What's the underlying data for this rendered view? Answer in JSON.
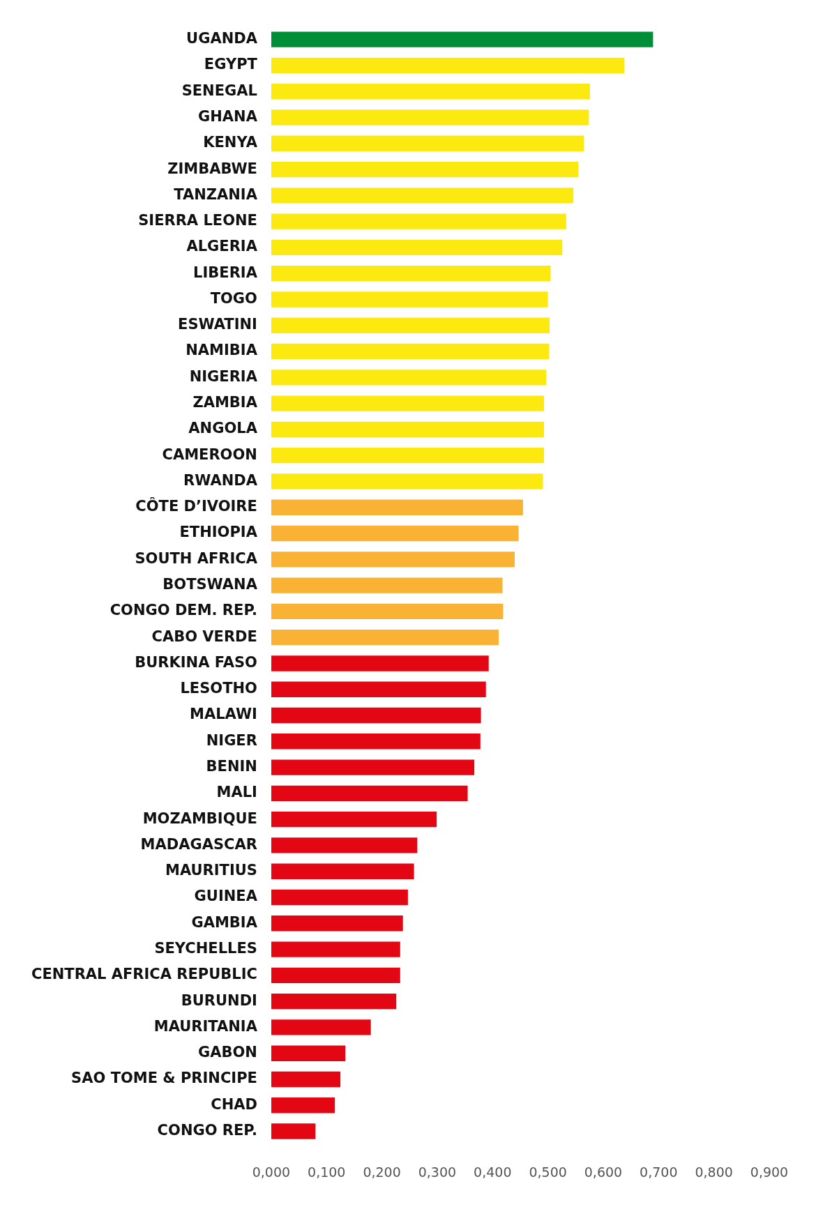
{
  "chart_data": {
    "type": "bar",
    "orientation": "horizontal",
    "categories": [
      "UGANDA",
      "EGYPT",
      "SENEGAL",
      "GHANA",
      "KENYA",
      "ZIMBABWE",
      "TANZANIA",
      "SIERRA LEONE",
      "ALGERIA",
      "LIBERIA",
      "TOGO",
      "ESWATINI",
      "NAMIBIA",
      "NIGERIA",
      "ZAMBIA",
      "ANGOLA",
      "CAMEROON",
      "RWANDA",
      "CÔTE D’IVOIRE",
      "ETHIOPIA",
      "SOUTH AFRICA",
      "BOTSWANA",
      "CONGO DEM. REP.",
      "CABO VERDE",
      "BURKINA FASO",
      "LESOTHO",
      "MALAWI",
      "NIGER",
      "BENIN",
      "MALI",
      "MOZAMBIQUE",
      "MADAGASCAR",
      "MAURITIUS",
      "GUINEA",
      "GAMBIA",
      "SEYCHELLES",
      "CENTRAL AFRICA REPUBLIC",
      "BURUNDI",
      "MAURITANIA",
      "GABON",
      "SAO TOME & PRINCIPE",
      "CHAD",
      "CONGO REP."
    ],
    "values": [
      0.69,
      0.638,
      0.576,
      0.574,
      0.565,
      0.555,
      0.546,
      0.533,
      0.526,
      0.505,
      0.5,
      0.503,
      0.502,
      0.497,
      0.493,
      0.493,
      0.493,
      0.491,
      0.455,
      0.447,
      0.44,
      0.418,
      0.419,
      0.411,
      0.393,
      0.388,
      0.379,
      0.378,
      0.367,
      0.355,
      0.299,
      0.264,
      0.258,
      0.247,
      0.238,
      0.233,
      0.233,
      0.226,
      0.18,
      0.134,
      0.125,
      0.115,
      0.08
    ],
    "colors": [
      "#008f36",
      "#fce910",
      "#fce910",
      "#fce910",
      "#fce910",
      "#fce910",
      "#fce910",
      "#fce910",
      "#fce910",
      "#fce910",
      "#fce910",
      "#fce910",
      "#fce910",
      "#fce910",
      "#fce910",
      "#fce910",
      "#fce910",
      "#fce910",
      "#f9b233",
      "#f9b233",
      "#f9b233",
      "#f9b233",
      "#f9b233",
      "#f9b233",
      "#e30613",
      "#e30613",
      "#e30613",
      "#e30613",
      "#e30613",
      "#e30613",
      "#e30613",
      "#e30613",
      "#e30613",
      "#e30613",
      "#e30613",
      "#e30613",
      "#e30613",
      "#e30613",
      "#e30613",
      "#e30613",
      "#e30613",
      "#e30613",
      "#e30613"
    ],
    "xlim": [
      0,
      0.9
    ],
    "xticks": [
      {
        "value": 0,
        "label": "0,000"
      },
      {
        "value": 0.1,
        "label": "0,100"
      },
      {
        "value": 0.2,
        "label": "0,200"
      },
      {
        "value": 0.3,
        "label": "0,300"
      },
      {
        "value": 0.4,
        "label": "0,400"
      },
      {
        "value": 0.5,
        "label": "0,500"
      },
      {
        "value": 0.6,
        "label": "0,600"
      },
      {
        "value": 0.7,
        "label": "0,700"
      },
      {
        "value": 0.8,
        "label": "0,800"
      },
      {
        "value": 0.9,
        "label": "0,900"
      }
    ],
    "grid": false,
    "legend": false
  }
}
